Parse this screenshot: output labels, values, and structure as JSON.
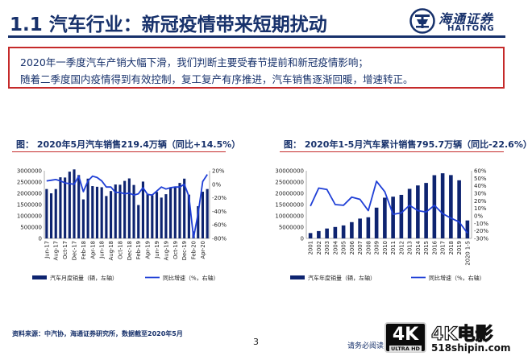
{
  "header": {
    "title": "1.1 汽车行业：新冠疫情带来短期扰动",
    "logo_cn": "海通证券",
    "logo_en": "HAITONG"
  },
  "summary": {
    "line1": "2020年一季度汽车产销大幅下滑，我们判断主要受春节提前和新冠疫情影响；",
    "line2": "随着二季度国内疫情得到有效控制，复工复产有序推进，汽车销售逐渐回暖，增速转正。"
  },
  "figures": {
    "left_title": "图：  2020年5月汽车销售219.4万辆（同比+14.5%）",
    "right_title": "图：  2020年1-5月汽车累计销售795.7万辆（同比-22.6%）"
  },
  "chart_data": [
    {
      "type": "bar",
      "categories": [
        "Jun-17",
        "Jul-17",
        "Aug-17",
        "Sep-17",
        "Oct-17",
        "Nov-17",
        "Dec-17",
        "Jan-18",
        "Feb-18",
        "Mar-18",
        "Apr-18",
        "May-18",
        "Jun-18",
        "Jul-18",
        "Aug-18",
        "Sep-18",
        "Oct-18",
        "Nov-18",
        "Dec-18",
        "Jan-19",
        "Feb-19",
        "Mar-19",
        "Apr-19",
        "May-19",
        "Jun-19",
        "Jul-19",
        "Aug-19",
        "Sep-19",
        "Oct-19",
        "Nov-19",
        "Dec-19",
        "Jan-20",
        "Feb-20",
        "Mar-20",
        "Apr-20",
        "May-20"
      ],
      "tick_labels": [
        "Jun-17",
        "Aug-17",
        "Oct-17",
        "Dec-17",
        "Feb-18",
        "Apr-18",
        "Jun-18",
        "Aug-18",
        "Oct-18",
        "Dec-18",
        "Feb-19",
        "Apr-19",
        "Jun-19",
        "Aug-19",
        "Oct-19",
        "Dec-19",
        "Feb-20",
        "Apr-20"
      ],
      "series": [
        {
          "name": "汽车月度销量（辆，左轴）",
          "axis": "left",
          "color": "#0e2470",
          "values": [
            2190000,
            2000000,
            2190000,
            2710000,
            2700000,
            2960000,
            3060000,
            2810000,
            1730000,
            2650000,
            2320000,
            2290000,
            2270000,
            1880000,
            2100000,
            2390000,
            2380000,
            2550000,
            2660000,
            2370000,
            1480000,
            2520000,
            1980000,
            1910000,
            2060000,
            1810000,
            1960000,
            2270000,
            2290000,
            2460000,
            2650000,
            1940000,
            310000,
            1430000,
            2070000,
            2190000
          ]
        },
        {
          "name": "同比增速（%，右轴）",
          "axis": "right",
          "type": "line",
          "color": "#1f3fd6",
          "values": [
            5,
            6,
            7,
            5,
            2,
            1,
            0,
            12,
            -11,
            5,
            12,
            10,
            5,
            -4,
            -4,
            -12,
            -12,
            -14,
            -13,
            -16,
            -14,
            -5,
            -15,
            -16,
            -10,
            -4,
            -7,
            -5,
            -4,
            -4,
            0,
            -18,
            -79,
            -43,
            4,
            14.5
          ]
        }
      ],
      "ylim_left": [
        0,
        3000000
      ],
      "yticks_left": [
        "3000000",
        "2500000",
        "2000000",
        "1500000",
        "1000000",
        "500000",
        "0"
      ],
      "ylim_right": [
        -80,
        20
      ],
      "yticks_right": [
        "20%",
        "0%",
        "-20%",
        "-40%",
        "-60%",
        "-80%"
      ]
    },
    {
      "type": "bar",
      "categories": [
        "2001",
        "2002",
        "2003",
        "2004",
        "2005",
        "2006",
        "2007",
        "2008",
        "2009",
        "2010",
        "2011",
        "2012",
        "2013",
        "2014",
        "2015",
        "2016",
        "2017",
        "2018",
        "2019",
        "2020 1-5"
      ],
      "series": [
        {
          "name": "汽车年度销量（辆，左轴）",
          "axis": "left",
          "color": "#0e2470",
          "values": [
            2370000,
            3250000,
            4390000,
            5070000,
            5760000,
            7220000,
            8790000,
            9380000,
            13640000,
            18060000,
            18510000,
            19310000,
            21980000,
            23490000,
            24600000,
            28030000,
            28880000,
            28080000,
            25770000,
            7960000
          ]
        },
        {
          "name": "同比增速（%，右轴）",
          "axis": "right",
          "type": "line",
          "color": "#1f3fd6",
          "values": [
            13,
            37,
            35,
            15,
            14,
            25,
            22,
            7,
            46,
            32,
            2,
            4,
            14,
            7,
            5,
            14,
            3,
            -3,
            -8,
            -23
          ]
        }
      ],
      "ylim_left": [
        0,
        30000000
      ],
      "yticks_left": [
        "30000000",
        "25000000",
        "20000000",
        "15000000",
        "10000000",
        "5000000",
        "0"
      ],
      "ylim_right": [
        -30,
        60
      ],
      "yticks_right": [
        "60%",
        "50%",
        "40%",
        "30%",
        "20%",
        "10%",
        "0%",
        "-10%",
        "-20%",
        "-30%"
      ]
    }
  ],
  "footer": {
    "source": "资料来源：中汽协，海通证券研究所，数据截至2020年5月",
    "page_number": "3",
    "note": "请务必阅读",
    "watermark_badge": "4K",
    "watermark_badge_sub": "ULTRA HD",
    "watermark_text": "4K电影",
    "watermark_url": "518shipin.com"
  }
}
